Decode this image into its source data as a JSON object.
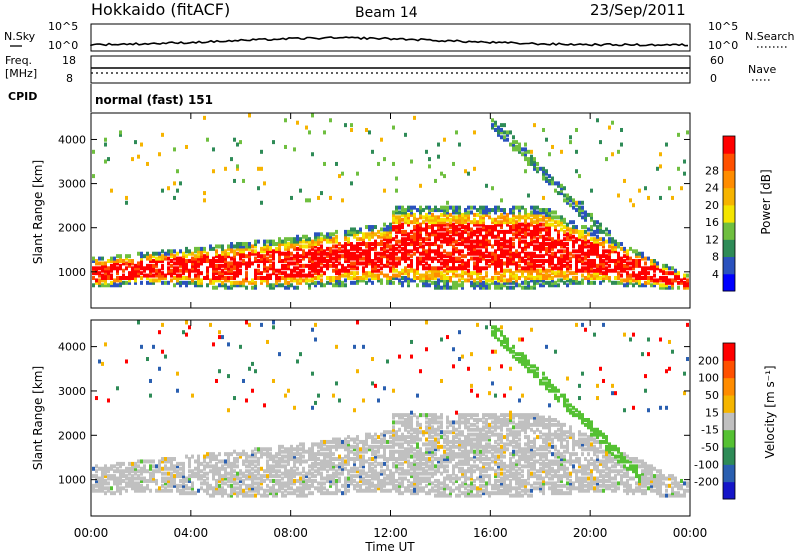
{
  "header": {
    "station": "Hokkaido (fitACF)",
    "beam": "Beam 14",
    "date": "23/Sep/2011"
  },
  "top_panels": {
    "nsky_label": "N.Sky",
    "nsky_ticks": [
      "10^5",
      "10^0"
    ],
    "nsearch_label": "N.Search",
    "nsearch_ticks": [
      "10^5",
      "10^0"
    ],
    "freq_label_1": "Freq.",
    "freq_label_2": "[MHz]",
    "freq_ticks": [
      "18",
      "8"
    ],
    "nave_label": "Nave",
    "nave_ticks": [
      "60",
      "0"
    ],
    "cpid_label": "CPID",
    "cpid_value": "normal (fast) 151"
  },
  "chart_data": [
    {
      "type": "heatmap",
      "name": "power",
      "ylabel": "Slant Range [km]",
      "ylim": [
        180,
        4600
      ],
      "yticks": [
        "1000",
        "2000",
        "3000",
        "4000"
      ],
      "xticks": [
        "00:00",
        "04:00",
        "08:00",
        "12:00",
        "16:00",
        "20:00",
        "00:00"
      ],
      "xlim_hours": [
        0,
        24
      ],
      "colorbar": {
        "label": "Power [dB]",
        "ticks": [
          "4",
          "8",
          "12",
          "16",
          "20",
          "24",
          "28"
        ],
        "colors": [
          "#0000ff",
          "#2a52be",
          "#2e8b57",
          "#6fbf3f",
          "#f4e500",
          "#f6b400",
          "#ff8c00",
          "#ff5000",
          "#ff0000"
        ]
      }
    },
    {
      "type": "heatmap",
      "name": "velocity",
      "ylabel": "Slant Range [km]",
      "ylim": [
        180,
        4600
      ],
      "yticks": [
        "1000",
        "2000",
        "3000",
        "4000"
      ],
      "xticks": [
        "00:00",
        "04:00",
        "08:00",
        "12:00",
        "16:00",
        "20:00",
        "00:00"
      ],
      "xlim_hours": [
        0,
        24
      ],
      "xlabel": "Time UT",
      "colorbar": {
        "label": "Velocity [m s⁻¹]",
        "ticks": [
          "200",
          "100",
          "50",
          "15",
          "-15",
          "-50",
          "-100",
          "-200"
        ],
        "colors": [
          "#1515c8",
          "#2a5fb0",
          "#2e8b57",
          "#55c133",
          "#c0c0c0",
          "#f5b500",
          "#ff8c00",
          "#ff5000",
          "#ff0000"
        ]
      }
    }
  ]
}
